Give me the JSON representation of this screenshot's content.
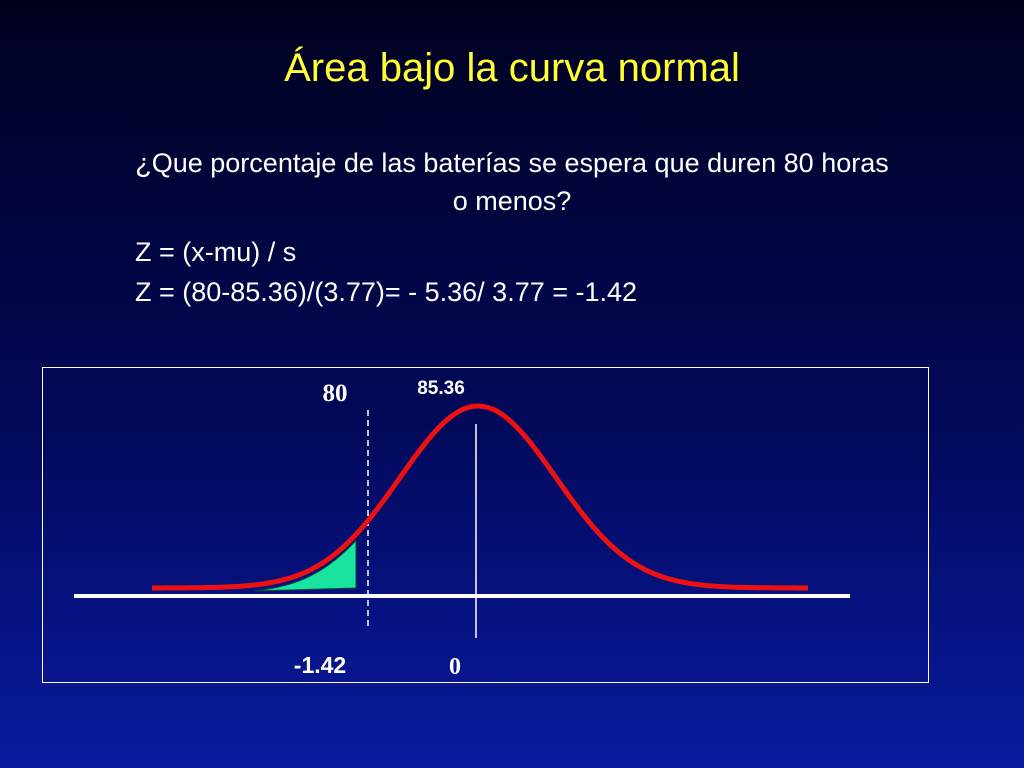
{
  "title": "Área bajo la curva normal",
  "question": {
    "lines": [
      "¿Que porcentaje de las baterías se espera que duren 80 horas",
      "o menos?"
    ]
  },
  "formulas": [
    "Z  = (x-mu) / s",
    "Z = (80-85.36)/(3.77)=  - 5.36/ 3.77 = -1.42"
  ],
  "diagram": {
    "x_label": "80",
    "mean_label": "85.36",
    "z_label": "-1.42",
    "zero_label": "0"
  }
}
